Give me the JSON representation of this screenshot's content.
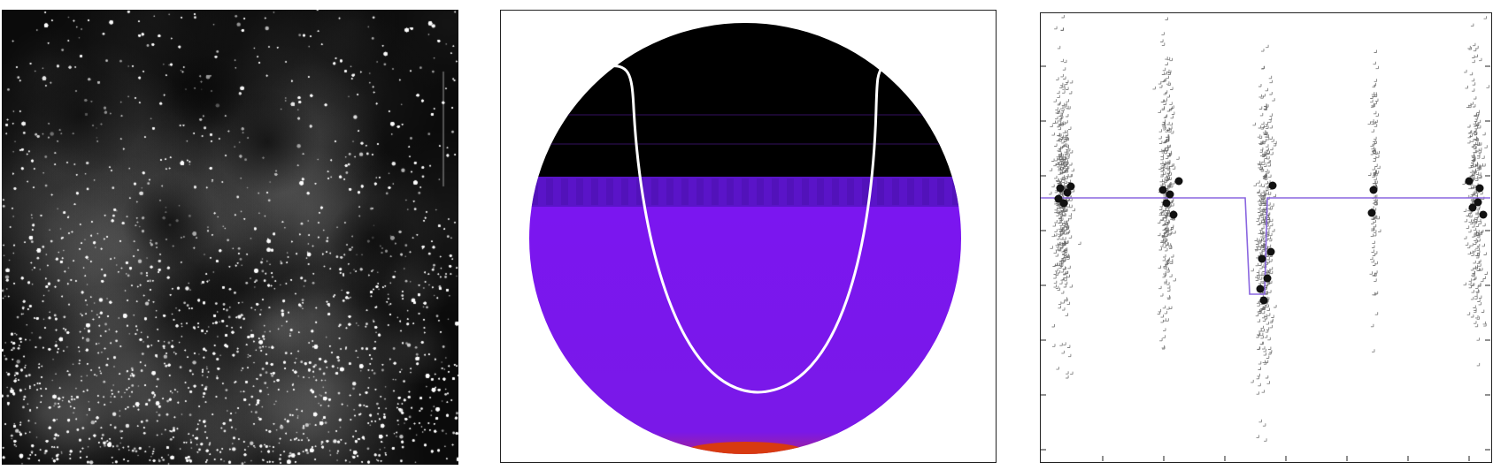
{
  "colors": {
    "background": "#ffffff",
    "starfield_bg": "#0a0a0a",
    "star": "#ffffff",
    "disk_top": "#000000",
    "disk_band": "#5a14c8",
    "disk_body": "#7b16f0",
    "disk_limb": "#d83a10",
    "track": "#ffffff",
    "data_cross": "#555555",
    "binned_point": "#111111",
    "model_line": "#8a66e0"
  },
  "icons": {
    "starfield": "star-field-image",
    "disk": "stellar-disk-diagram",
    "lightcurve": "transit-light-curve"
  }
}
